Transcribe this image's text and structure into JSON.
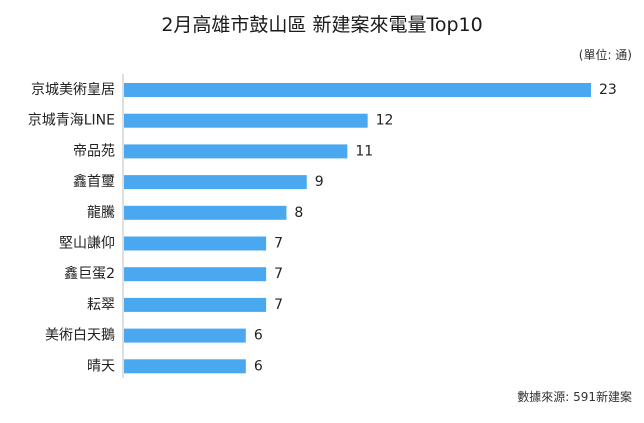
{
  "chart_data": {
    "type": "bar",
    "orientation": "horizontal",
    "title": "2月高雄市鼓山區 新建案來電量Top10",
    "unit_label": "(單位: 通)",
    "source_label": "數據來源: 591新建案",
    "categories": [
      "京城美術皇居",
      "京城青海LINE",
      "帝品苑",
      "鑫首璽",
      "龍騰",
      "堅山謙仰",
      "鑫巨蛋2",
      "耘翠",
      "美術白天鵝",
      "晴天"
    ],
    "values": [
      23,
      12,
      11,
      9,
      8,
      7,
      7,
      7,
      6,
      6
    ],
    "xlim": [
      0,
      23
    ],
    "grid": false,
    "legend": "none"
  },
  "colors": {
    "bar": "#4aa8f0",
    "axis": "#bfbfbf",
    "text": "#222222"
  }
}
